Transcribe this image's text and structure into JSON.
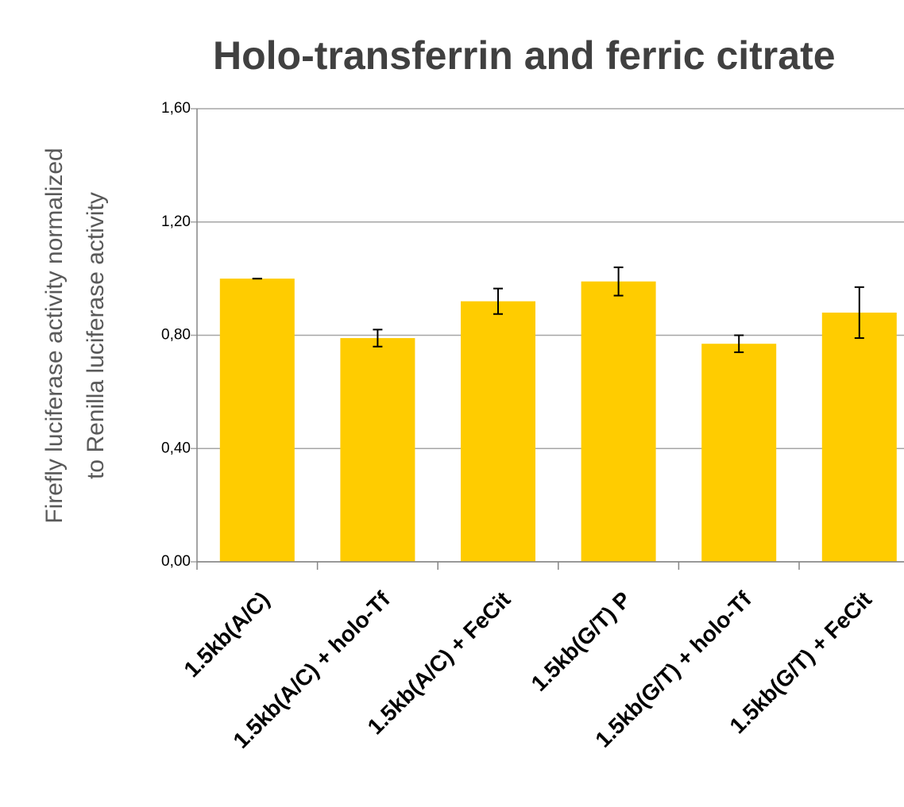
{
  "chart_data": {
    "type": "bar",
    "title": "Holo-transferrin and ferric citrate",
    "ylabel_lines": [
      "Firefly luciferase  activity normalized",
      "to Renilla luciferase activity"
    ],
    "categories": [
      "1.5kb(A/C)",
      "1.5kb(A/C) + holo-Tf",
      "1.5kb(A/C) + FeCit",
      "1.5kb(G/T) P",
      "1.5kb(G/T) + holo-Tf",
      "1.5kb(G/T) + FeCit"
    ],
    "values": [
      1.0,
      0.79,
      0.92,
      0.99,
      0.77,
      0.88
    ],
    "errors": [
      0.0,
      0.03,
      0.045,
      0.05,
      0.03,
      0.09
    ],
    "color": "#ffcc00",
    "ylim": [
      0,
      1.6
    ],
    "yticks": [
      {
        "value": 0,
        "label": "0,00"
      },
      {
        "value": 0.4,
        "label": "0,40"
      },
      {
        "value": 0.8,
        "label": "0,80"
      },
      {
        "value": 1.2,
        "label": "1,20"
      },
      {
        "value": 1.6,
        "label": "1,60"
      }
    ],
    "grid": true
  }
}
